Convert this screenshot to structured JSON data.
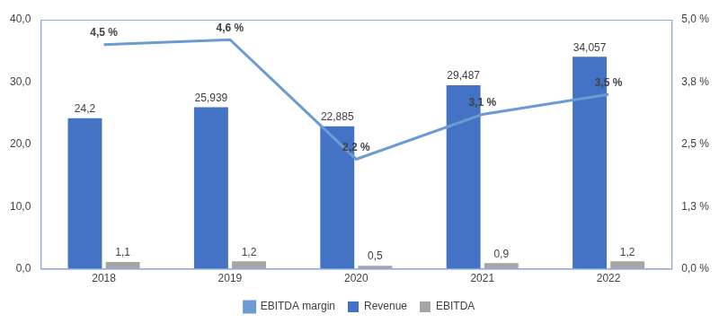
{
  "chart_data": {
    "type": "bar",
    "categories": [
      "2018",
      "2019",
      "2020",
      "2021",
      "2022"
    ],
    "series": [
      {
        "name": "Revenue",
        "type": "bar",
        "color": "#4472c4",
        "values": [
          24.2,
          25.939,
          22.885,
          29.487,
          34.057
        ],
        "value_labels": [
          "24,2",
          "25,939",
          "22,885",
          "29,487",
          "34,057"
        ]
      },
      {
        "name": "EBITDA",
        "type": "bar",
        "color": "#a5a5a5",
        "values": [
          1.1,
          1.2,
          0.5,
          0.9,
          1.2
        ],
        "value_labels": [
          "1,1",
          "1,2",
          "0,5",
          "0,9",
          "1,2"
        ]
      },
      {
        "name": "EBITDA margin",
        "type": "line",
        "axis": "y2",
        "color": "#6b9bd2",
        "values": [
          4.5,
          4.6,
          2.2,
          3.1,
          3.5
        ],
        "value_labels": [
          "4,5 %",
          "4,6 %",
          "2,2 %",
          "3,1 %",
          "3,5 %"
        ]
      }
    ],
    "ylim": [
      0,
      40
    ],
    "yticks": [
      {
        "value": 0,
        "label": "0,0"
      },
      {
        "value": 10,
        "label": "10,0"
      },
      {
        "value": 20,
        "label": "20,0"
      },
      {
        "value": 30,
        "label": "30,0"
      },
      {
        "value": 40,
        "label": "40,0"
      }
    ],
    "y2lim": [
      0,
      5
    ],
    "y2ticks": [
      {
        "value": 0,
        "label": "0,0 %"
      },
      {
        "value": 1.25,
        "label": "1,3 %"
      },
      {
        "value": 2.5,
        "label": "2,5 %"
      },
      {
        "value": 3.75,
        "label": "3,8 %"
      },
      {
        "value": 5,
        "label": "5,0 %"
      }
    ],
    "grid": false,
    "legend": "bottom",
    "data_labels": true
  }
}
